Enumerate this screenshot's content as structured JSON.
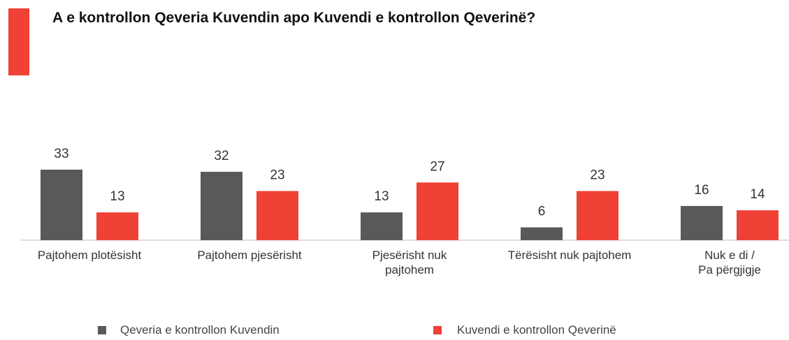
{
  "chart_data": {
    "type": "bar",
    "title": "A e kontrollon Qeveria Kuvendin apo Kuvendi e kontrollon Qeverinë?",
    "categories": [
      "Pajtohem plotësisht",
      "Pajtohem pjesërisht",
      "Pjesërisht nuk\npajtohem",
      "Tërësisht nuk pajtohem",
      "Nuk e di /\nPa përgjigje"
    ],
    "series": [
      {
        "name": "Qeveria e kontrollon Kuvendin",
        "color": "#58595b",
        "values": [
          33,
          32,
          13,
          6,
          16
        ]
      },
      {
        "name": "Kuvendi e kontrollon Qeverinë",
        "color": "#ef4135",
        "values": [
          13,
          23,
          27,
          23,
          14
        ]
      }
    ],
    "accent_color": "#ef4135",
    "legend": "bottom"
  }
}
